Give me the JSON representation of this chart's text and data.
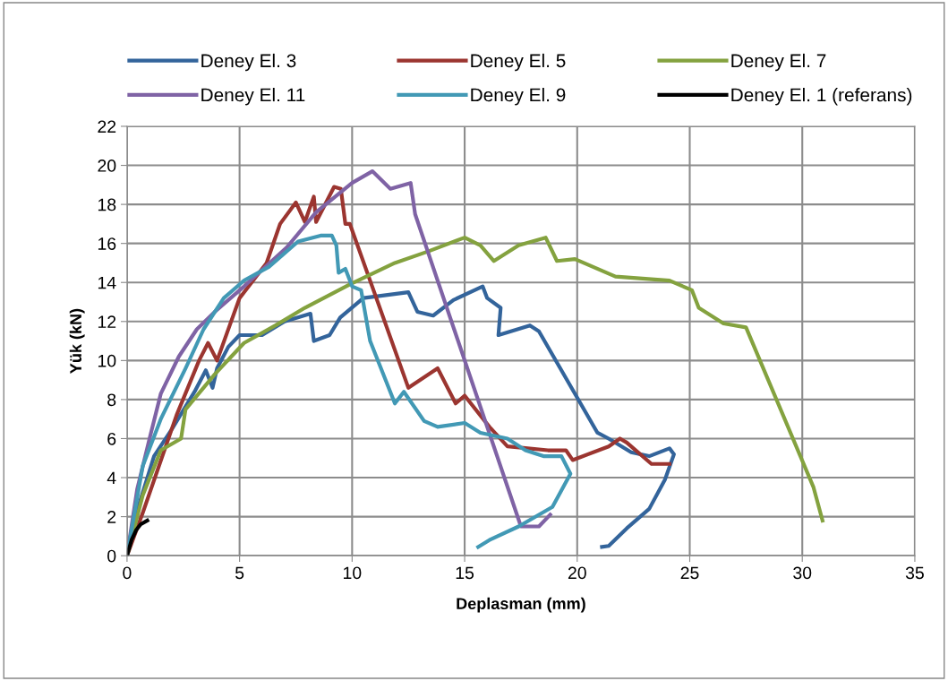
{
  "chart_data": {
    "type": "line",
    "xlabel": "Deplasman (mm)",
    "ylabel": "Yük (kN)",
    "xlim": [
      0,
      35
    ],
    "xticks": [
      0,
      5,
      10,
      15,
      20,
      25,
      30,
      35
    ],
    "ylim": [
      0,
      22
    ],
    "yticks": [
      0,
      2,
      4,
      6,
      8,
      10,
      12,
      14,
      16,
      18,
      20,
      22
    ],
    "grid": true,
    "legend": "top",
    "line_style": "solid",
    "marker": "none",
    "series": [
      {
        "name": "Deney El. 3",
        "color": "#33649b",
        "x": [
          0,
          0.5,
          1.2,
          2,
          3,
          3.5,
          3.8,
          4,
          4.5,
          5,
          6,
          7,
          8.15,
          8.3,
          9,
          9.47,
          10.5,
          12.5,
          12.9,
          13.6,
          14.5,
          15.8,
          16.0,
          16.6,
          16.5,
          17.9,
          18.3,
          20.9,
          21.4,
          22.4,
          23.2,
          24.1,
          24.3,
          23.9,
          23.2,
          22.2,
          21.4,
          21.1
        ],
        "values": [
          0,
          2.5,
          5.1,
          6.5,
          8.4,
          9.5,
          8.6,
          9.6,
          10.7,
          11.3,
          11.3,
          12.0,
          12.4,
          11.0,
          11.3,
          12.2,
          13.2,
          13.5,
          12.5,
          12.3,
          13.1,
          13.8,
          13.2,
          12.7,
          11.3,
          11.8,
          11.5,
          6.3,
          6.0,
          5.3,
          5.1,
          5.5,
          5.2,
          3.9,
          2.4,
          1.4,
          0.5,
          0.45
        ]
      },
      {
        "name": "Deney El. 5",
        "color": "#9b3530",
        "x": [
          0,
          0.7,
          2.2,
          3.2,
          3.6,
          4.0,
          5.0,
          6.2,
          6.8,
          7.5,
          7.9,
          8.3,
          8.4,
          9.2,
          9.5,
          9.7,
          9.9,
          12.5,
          13.8,
          14.6,
          15.0,
          16.1,
          16.9,
          18.7,
          19.5,
          19.8,
          21.4,
          21.9,
          22.2,
          23.3,
          24.1
        ],
        "values": [
          0,
          2.2,
          7.2,
          10.0,
          10.9,
          10.0,
          13.2,
          15.0,
          17.0,
          18.1,
          17.1,
          18.4,
          17.1,
          18.9,
          18.8,
          17.0,
          17.0,
          8.6,
          9.6,
          7.8,
          8.2,
          6.6,
          5.6,
          5.4,
          5.4,
          4.9,
          5.6,
          6.0,
          5.8,
          4.7,
          4.7
        ]
      },
      {
        "name": "Deney El. 7",
        "color": "#84a23f",
        "x": [
          0,
          0.7,
          1.5,
          2.4,
          2.6,
          3.9,
          5.2,
          6.6,
          7.9,
          9.9,
          11.9,
          13.4,
          15.0,
          15.7,
          16.3,
          17.4,
          18.6,
          19.1,
          19.9,
          21.7,
          24.1,
          25.1,
          25.4,
          26.5,
          27.5,
          30.5,
          30.9
        ],
        "values": [
          0,
          3.1,
          5.4,
          6.0,
          7.5,
          9.3,
          10.9,
          11.8,
          12.7,
          13.9,
          15.0,
          15.6,
          16.3,
          15.9,
          15.1,
          15.9,
          16.3,
          15.1,
          15.2,
          14.3,
          14.1,
          13.6,
          12.7,
          11.9,
          11.7,
          3.5,
          1.8
        ]
      },
      {
        "name": "Deney El. 11",
        "color": "#7f63a5",
        "x": [
          0,
          0.45,
          1.0,
          1.5,
          2.3,
          3.1,
          3.9,
          5.2,
          7.1,
          8.4,
          10.0,
          10.9,
          11.7,
          12.6,
          12.8,
          17.5,
          18.3,
          18.8
        ],
        "values": [
          0,
          3.4,
          6.0,
          8.3,
          10.2,
          11.6,
          12.5,
          13.8,
          15.8,
          17.6,
          19.1,
          19.7,
          18.8,
          19.1,
          17.5,
          1.5,
          1.5,
          2.1
        ]
      },
      {
        "name": "Deney El. 9",
        "color": "#4299b5",
        "x": [
          0,
          0.7,
          1.5,
          2.6,
          3.4,
          4.3,
          5.2,
          6.3,
          7.6,
          8.6,
          9.1,
          9.3,
          9.4,
          9.7,
          10.0,
          10.4,
          10.8,
          11.9,
          12.3,
          13.2,
          13.8,
          15.0,
          15.7,
          16.9,
          17.7,
          18.5,
          19.3,
          19.7,
          18.9,
          17.4,
          16.1,
          15.6
        ],
        "values": [
          0,
          4.6,
          7.0,
          9.6,
          11.6,
          13.2,
          14.1,
          14.8,
          16.1,
          16.4,
          16.4,
          15.9,
          14.5,
          14.7,
          13.8,
          13.6,
          11.0,
          7.8,
          8.4,
          6.9,
          6.6,
          6.8,
          6.3,
          6.0,
          5.4,
          5.1,
          5.1,
          4.2,
          2.5,
          1.5,
          0.8,
          0.45
        ]
      },
      {
        "name": "Deney El. 1 (referans)",
        "color": "#000000",
        "x": [
          0,
          0.2,
          0.4,
          0.6,
          0.9
        ],
        "values": [
          0,
          0.8,
          1.3,
          1.6,
          1.8
        ]
      }
    ]
  }
}
